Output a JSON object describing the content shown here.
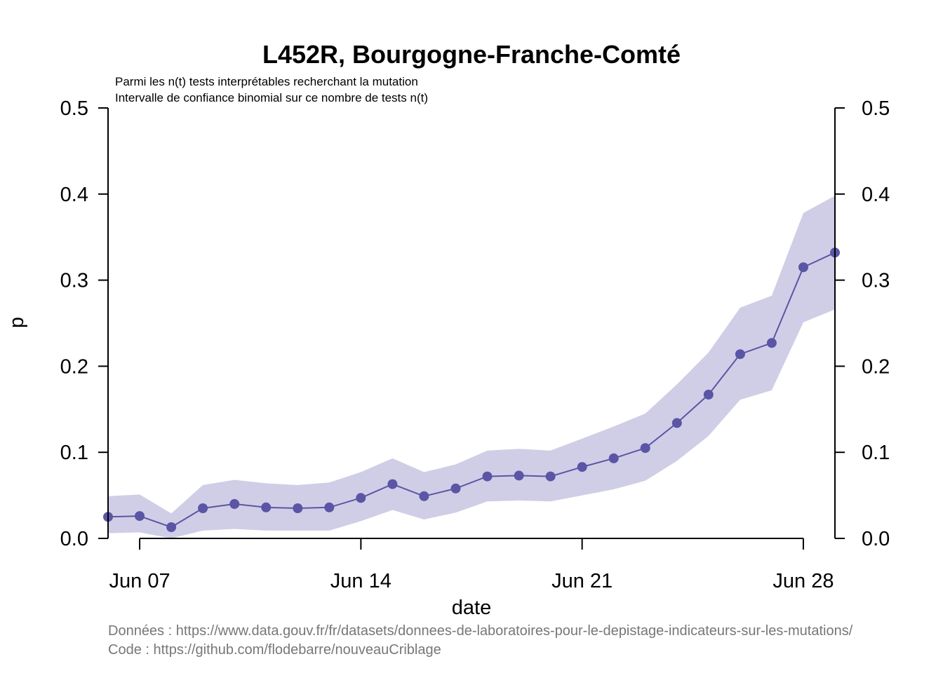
{
  "chart_data": {
    "type": "line",
    "title": "L452R, Bourgogne-Franche-Comté",
    "subtitle_lines": [
      "Parmi les n(t) tests interprétables recherchant la mutation",
      "Intervalle de confiance binomial sur ce nombre de tests n(t)"
    ],
    "xlabel": "date",
    "ylabel": "p",
    "x_ticks": [
      {
        "date": "2021-06-07",
        "label": "Jun 07"
      },
      {
        "date": "2021-06-14",
        "label": "Jun 14"
      },
      {
        "date": "2021-06-21",
        "label": "Jun 21"
      },
      {
        "date": "2021-06-28",
        "label": "Jun 28"
      }
    ],
    "y_ticks": [
      "0.0",
      "0.1",
      "0.2",
      "0.3",
      "0.4",
      "0.5"
    ],
    "ylim": [
      0,
      0.5
    ],
    "xlim": [
      "2021-06-06",
      "2021-06-29"
    ],
    "grid": false,
    "right_axis": true,
    "colors": {
      "line": "#5b55a6",
      "band": "#d0cee6"
    },
    "series": [
      {
        "x": [
          "2021-06-06",
          "2021-06-07",
          "2021-06-08",
          "2021-06-09",
          "2021-06-10",
          "2021-06-11",
          "2021-06-12",
          "2021-06-13",
          "2021-06-14",
          "2021-06-15",
          "2021-06-16",
          "2021-06-17",
          "2021-06-18",
          "2021-06-19",
          "2021-06-20",
          "2021-06-21",
          "2021-06-22",
          "2021-06-23",
          "2021-06-24",
          "2021-06-25",
          "2021-06-26",
          "2021-06-27",
          "2021-06-28",
          "2021-06-29"
        ],
        "values": [
          0.025,
          0.026,
          0.013,
          0.035,
          0.04,
          0.036,
          0.035,
          0.036,
          0.047,
          0.063,
          0.049,
          0.058,
          0.072,
          0.073,
          0.072,
          0.083,
          0.093,
          0.105,
          0.134,
          0.167,
          0.214,
          0.227,
          0.315,
          0.332
        ],
        "lower": [
          0.006,
          0.007,
          0.0,
          0.009,
          0.011,
          0.009,
          0.009,
          0.009,
          0.02,
          0.033,
          0.022,
          0.03,
          0.043,
          0.044,
          0.043,
          0.05,
          0.057,
          0.067,
          0.09,
          0.119,
          0.161,
          0.172,
          0.251,
          0.266
        ],
        "upper": [
          0.049,
          0.051,
          0.029,
          0.062,
          0.068,
          0.064,
          0.062,
          0.065,
          0.077,
          0.093,
          0.077,
          0.086,
          0.102,
          0.104,
          0.102,
          0.116,
          0.13,
          0.145,
          0.179,
          0.216,
          0.268,
          0.282,
          0.378,
          0.398
        ]
      }
    ]
  },
  "caption": {
    "data_line": "Données : https://www.data.gouv.fr/fr/datasets/donnees-de-laboratoires-pour-le-depistage-indicateurs-sur-les-mutations/",
    "code_line": "Code : https://github.com/flodebarre/nouveauCriblage"
  }
}
